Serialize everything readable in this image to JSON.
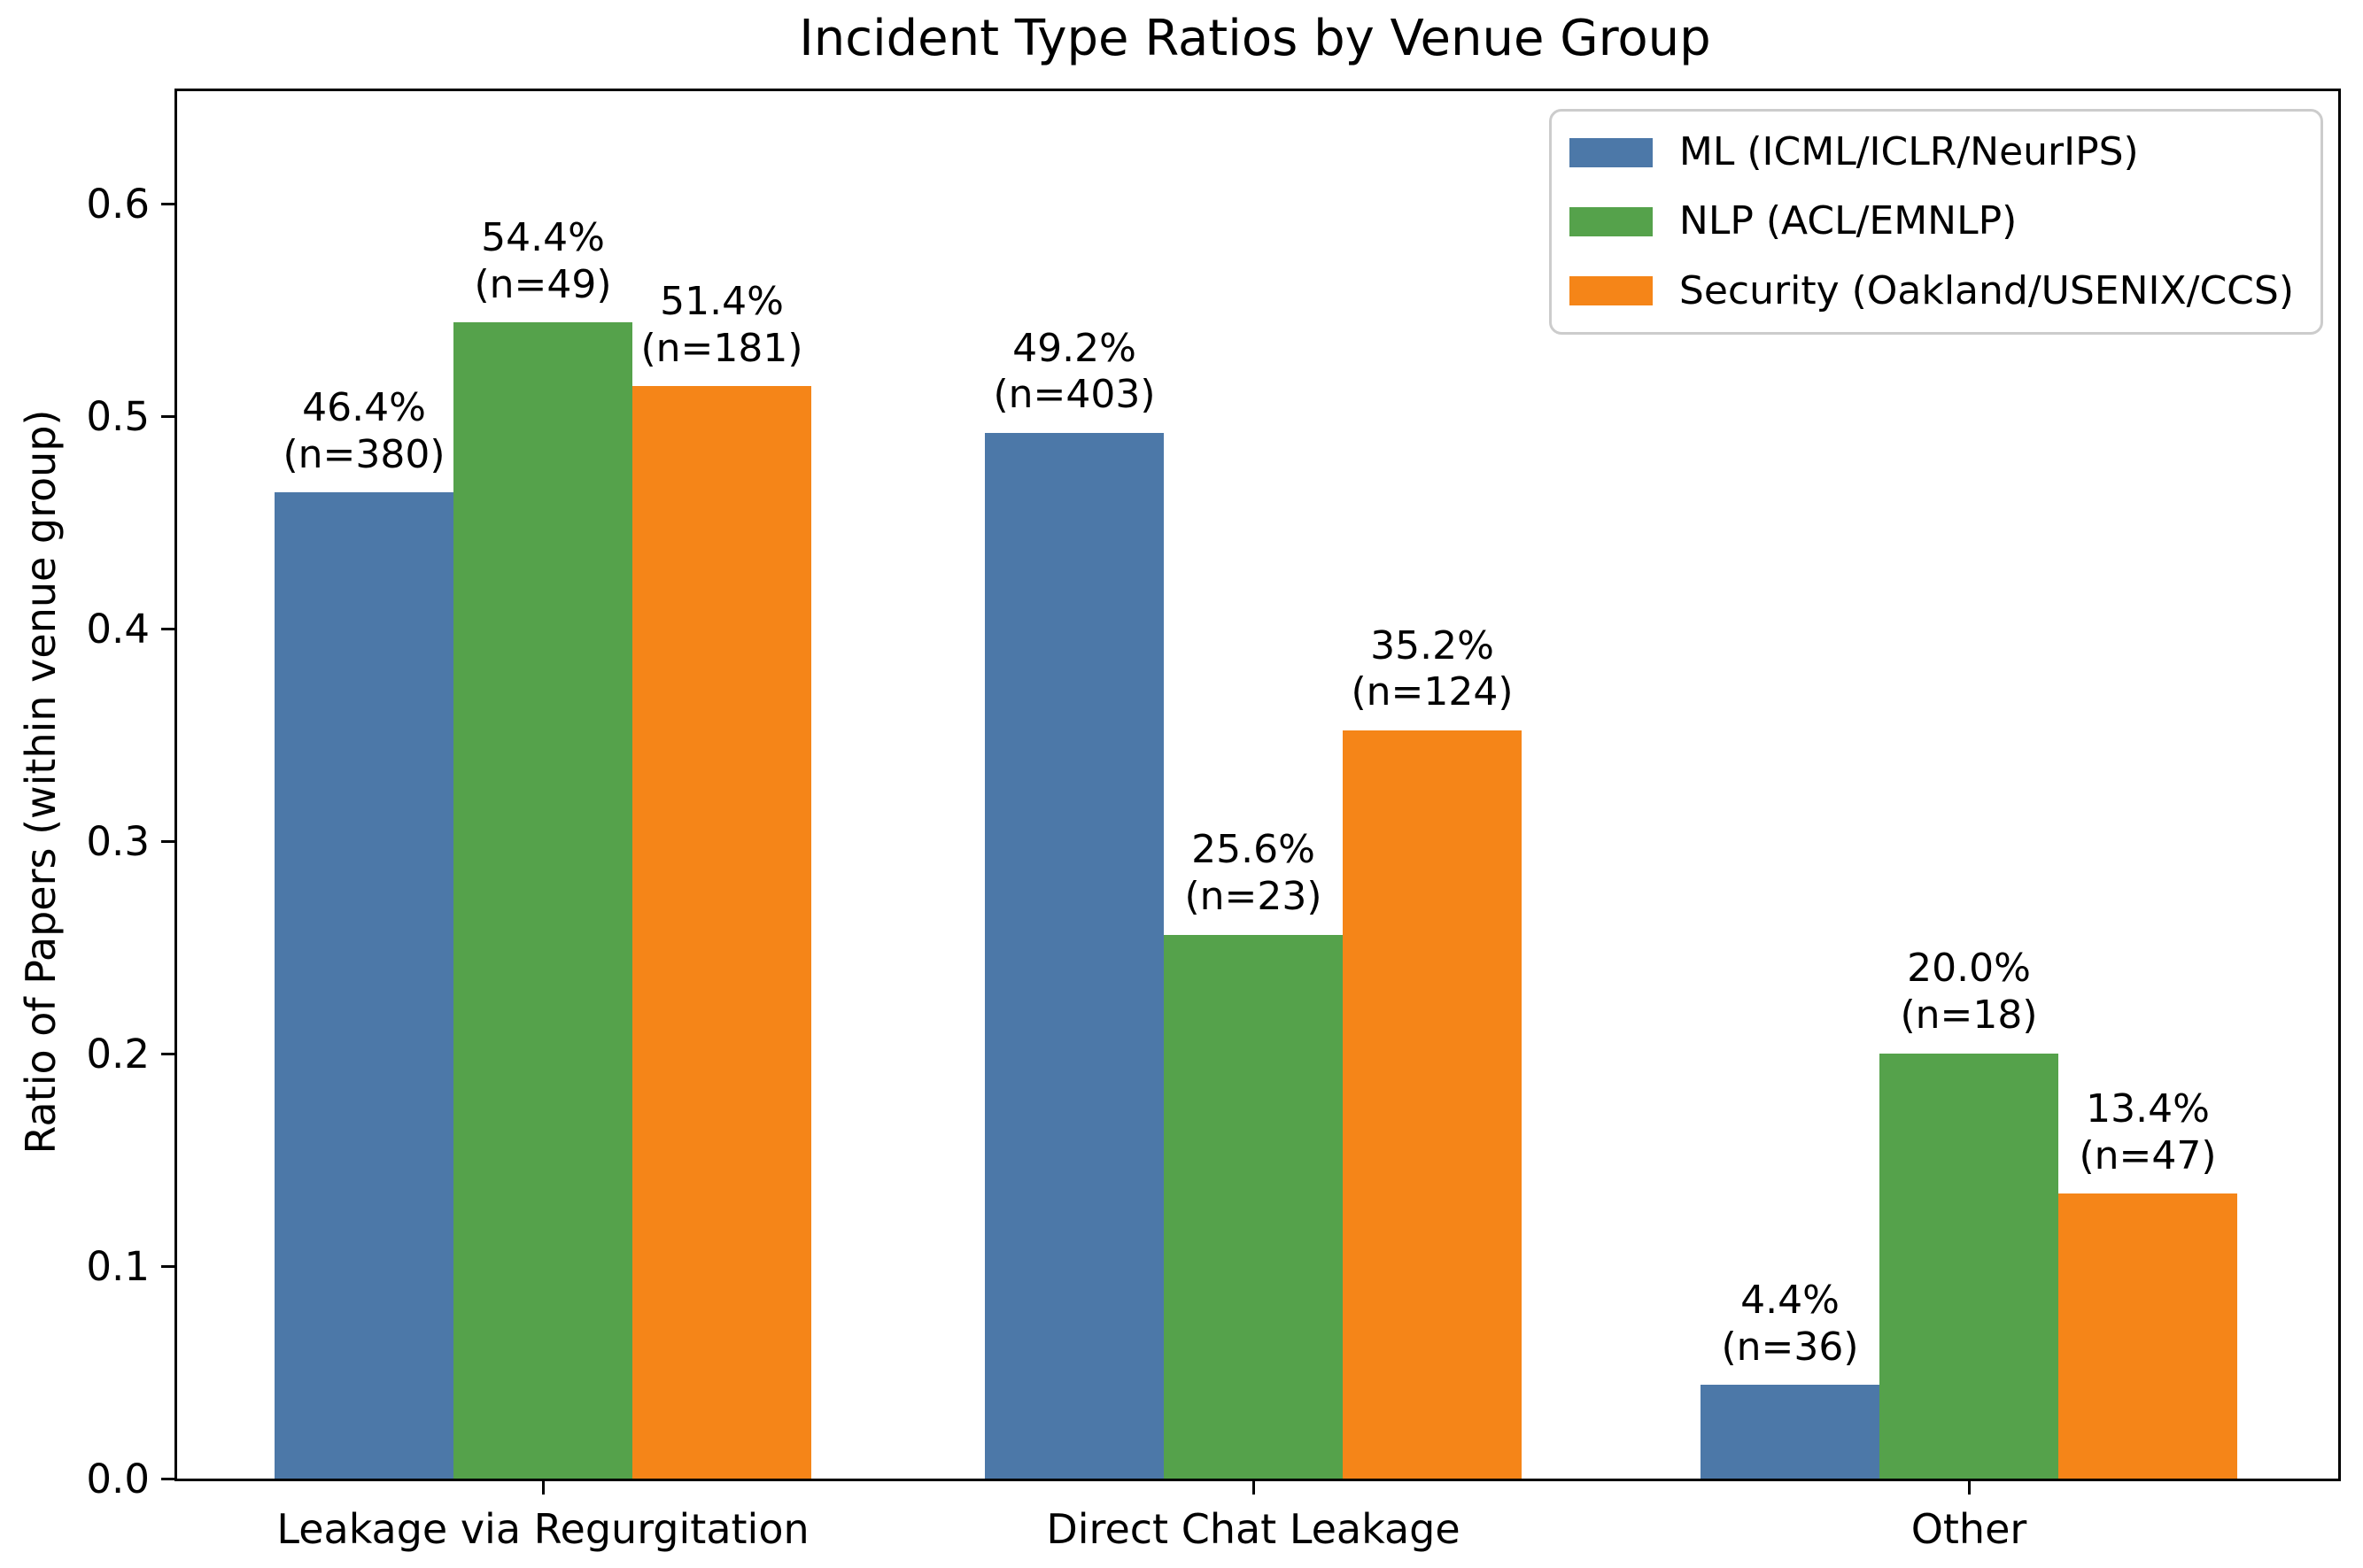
{
  "chart_data": {
    "type": "bar",
    "title": "Incident Type Ratios by Venue Group",
    "xlabel": "",
    "ylabel": "Ratio of Papers (within venue group)",
    "categories": [
      "Leakage via Regurgitation",
      "Direct Chat Leakage",
      "Other"
    ],
    "series": [
      {
        "name": "ML (ICML/ICLR/NeurIPS)",
        "color": "#4C78A8",
        "values": [
          0.464,
          0.492,
          0.044
        ],
        "counts": [
          380,
          403,
          36
        ],
        "bar_labels": [
          [
            "46.4%",
            "(n=380)"
          ],
          [
            "49.2%",
            "(n=403)"
          ],
          [
            "4.4%",
            "(n=36)"
          ]
        ]
      },
      {
        "name": "NLP (ACL/EMNLP)",
        "color": "#55A24B",
        "values": [
          0.544,
          0.256,
          0.2
        ],
        "counts": [
          49,
          23,
          18
        ],
        "bar_labels": [
          [
            "54.4%",
            "(n=49)"
          ],
          [
            "25.6%",
            "(n=23)"
          ],
          [
            "20.0%",
            "(n=18)"
          ]
        ]
      },
      {
        "name": "Security (Oakland/USENIX/CCS)",
        "color": "#F58518",
        "values": [
          0.514,
          0.352,
          0.134
        ],
        "counts": [
          181,
          124,
          47
        ],
        "bar_labels": [
          [
            "51.4%",
            "(n=181)"
          ],
          [
            "35.2%",
            "(n=124)"
          ],
          [
            "13.4%",
            "(n=47)"
          ]
        ]
      }
    ],
    "yticks": [
      0.0,
      0.1,
      0.2,
      0.3,
      0.4,
      0.5,
      0.6
    ],
    "ytick_labels": [
      "0.0",
      "0.1",
      "0.2",
      "0.3",
      "0.4",
      "0.5",
      "0.6"
    ],
    "ylim": [
      0,
      0.653
    ],
    "grid": false,
    "legend_position": "upper right",
    "colors": {
      "text": "#000000",
      "spine": "#000000",
      "legend_border": "#cccccc",
      "background": "#ffffff"
    }
  }
}
